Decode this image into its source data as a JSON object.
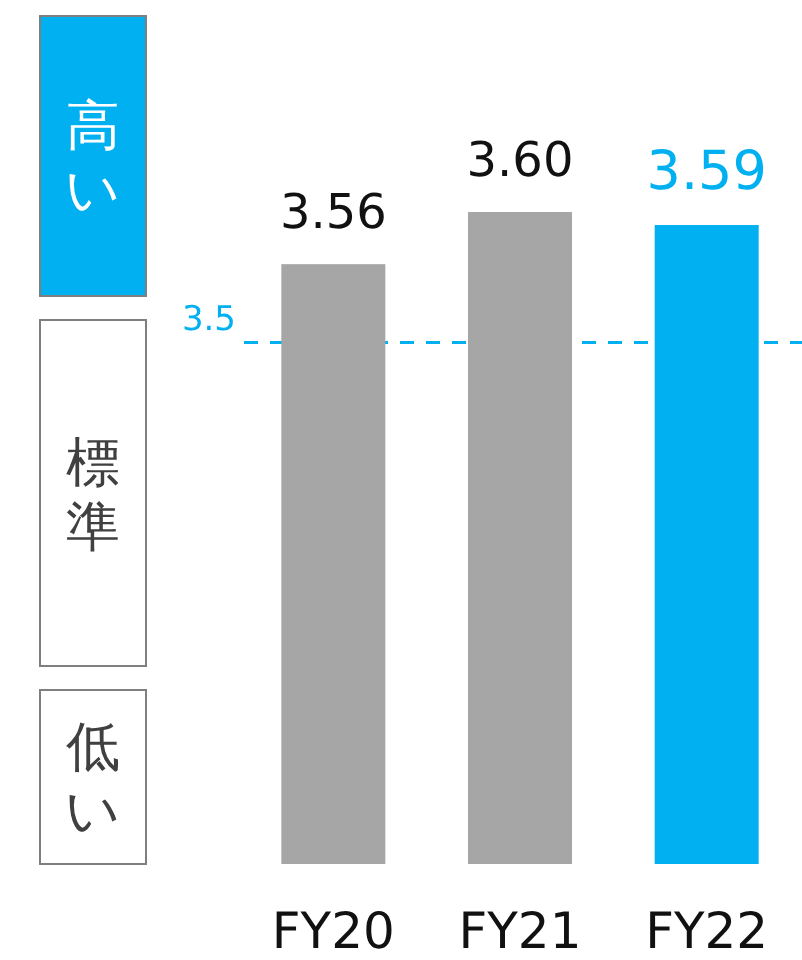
{
  "chart_data": {
    "type": "bar",
    "categories": [
      "FY20",
      "FY21",
      "FY22"
    ],
    "values": [
      3.56,
      3.6,
      3.59
    ],
    "colors": [
      "#a6a6a6",
      "#a6a6a6",
      "#00b0f0"
    ],
    "value_labels": [
      "3.56",
      "3.60",
      "3.59"
    ],
    "ylim": [
      3.1,
      3.6
    ],
    "ref_lines": [
      {
        "axis": "y",
        "value": 3.5,
        "label": "3.5",
        "color": "#00b0f0",
        "line_style": "dashed"
      }
    ],
    "annotations": [
      "高い",
      "標準",
      "低い"
    ]
  }
}
